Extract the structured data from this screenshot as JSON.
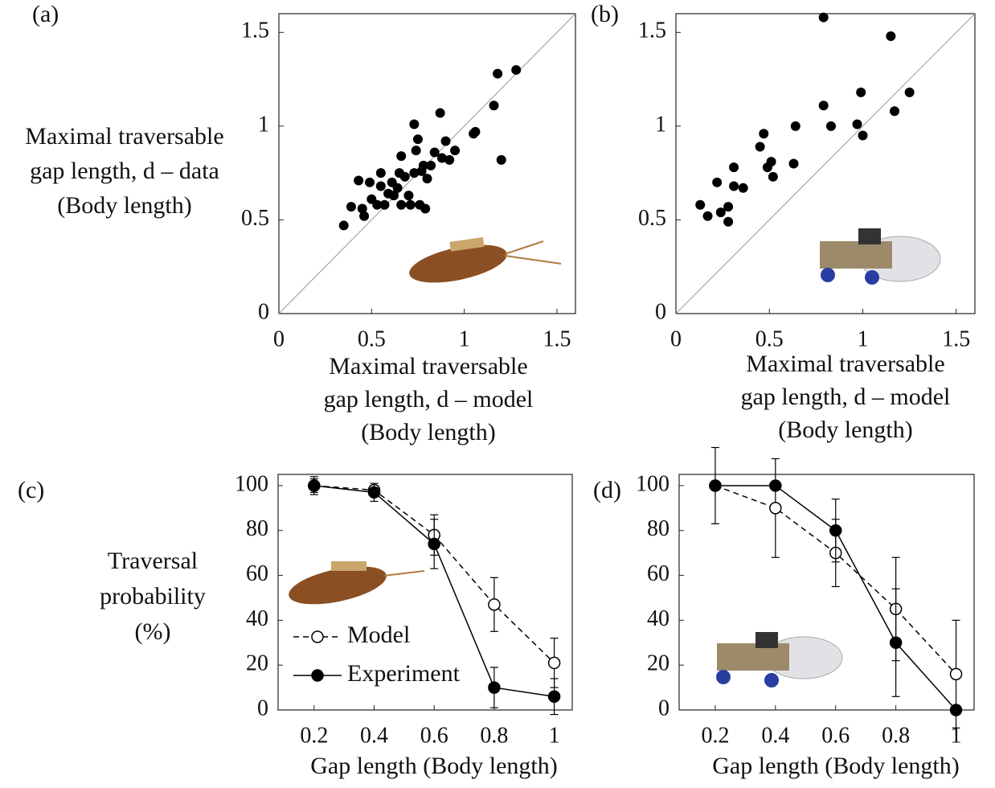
{
  "chart_data": [
    {
      "type": "scatter",
      "label": "(a)",
      "ylabel": [
        "Maximal traversable",
        "gap length, d – data",
        "(Body length)"
      ],
      "xlabel": [
        "Maximal traversable",
        "gap length, d – model",
        "(Body length)"
      ],
      "x": [
        0.35,
        0.39,
        0.43,
        0.45,
        0.46,
        0.49,
        0.5,
        0.53,
        0.55,
        0.55,
        0.57,
        0.59,
        0.61,
        0.62,
        0.64,
        0.65,
        0.66,
        0.66,
        0.68,
        0.7,
        0.71,
        0.73,
        0.73,
        0.74,
        0.75,
        0.76,
        0.77,
        0.78,
        0.79,
        0.8,
        0.82,
        0.84,
        0.87,
        0.88,
        0.9,
        0.92,
        0.95,
        1.05,
        1.06,
        1.16,
        1.18,
        1.2,
        1.28
      ],
      "values": [
        0.47,
        0.57,
        0.71,
        0.56,
        0.52,
        0.7,
        0.61,
        0.58,
        0.75,
        0.68,
        0.58,
        0.64,
        0.7,
        0.63,
        0.67,
        0.75,
        0.84,
        0.58,
        0.73,
        0.63,
        0.58,
        1.01,
        0.75,
        0.87,
        0.93,
        0.58,
        0.76,
        0.79,
        0.56,
        0.72,
        0.79,
        0.86,
        1.07,
        0.83,
        0.92,
        0.82,
        0.87,
        0.96,
        0.97,
        1.11,
        1.28,
        0.82,
        1.3
      ],
      "color": "#000000",
      "diagonal": true,
      "xlim": [
        0,
        1.6
      ],
      "ylim": [
        0,
        1.6
      ],
      "xticks": [
        0,
        0.5,
        1,
        1.5
      ],
      "yticks": [
        0,
        0.5,
        1,
        1.5
      ]
    },
    {
      "type": "scatter",
      "label": "(b)",
      "xlabel": [
        "Maximal traversable",
        "gap length, d – model",
        "(Body length)"
      ],
      "x": [
        0.13,
        0.17,
        0.22,
        0.24,
        0.28,
        0.28,
        0.31,
        0.31,
        0.36,
        0.45,
        0.47,
        0.49,
        0.51,
        0.52,
        0.63,
        0.64,
        0.79,
        0.79,
        0.83,
        0.97,
        0.99,
        1.0,
        1.15,
        1.17,
        1.25
      ],
      "values": [
        0.58,
        0.52,
        0.7,
        0.54,
        0.49,
        0.57,
        0.68,
        0.78,
        0.67,
        0.89,
        0.96,
        0.78,
        0.81,
        0.73,
        0.8,
        1.0,
        1.11,
        1.58,
        1.0,
        1.01,
        1.18,
        0.95,
        1.48,
        1.08,
        1.18
      ],
      "color": "#000000",
      "diagonal": true,
      "xlim": [
        0,
        1.6
      ],
      "ylim": [
        0,
        1.6
      ],
      "xticks": [
        0,
        0.5,
        1,
        1.5
      ],
      "yticks": [
        0,
        0.5,
        1,
        1.5
      ]
    },
    {
      "type": "line",
      "label": "(c)",
      "ylabel": [
        "Traversal",
        "probability",
        "(%)"
      ],
      "xlabel": "Gap length (Body length)",
      "x": [
        0.2,
        0.4,
        0.6,
        0.8,
        1
      ],
      "series": [
        {
          "name": "Model",
          "color": "#000000",
          "dashed": true,
          "filled": false,
          "values": [
            100,
            98,
            78,
            47,
            21
          ],
          "errors": [
            4,
            2,
            9,
            12,
            11
          ]
        },
        {
          "name": "Experiment",
          "color": "#000000",
          "dashed": false,
          "filled": true,
          "values": [
            100,
            97,
            74,
            10,
            6
          ],
          "errors": [
            3,
            4,
            11,
            9,
            8
          ]
        }
      ],
      "legend": true,
      "xlim": [
        0.08,
        1.06
      ],
      "ylim": [
        0,
        105
      ],
      "xticks": [
        0.2,
        0.4,
        0.6,
        0.8,
        1
      ],
      "yticks": [
        0,
        20,
        40,
        60,
        80,
        100
      ]
    },
    {
      "type": "line",
      "label": "(d)",
      "xlabel": "Gap length (Body length)",
      "x": [
        0.2,
        0.4,
        0.6,
        0.8,
        1
      ],
      "series": [
        {
          "name": "Model",
          "color": "#000000",
          "dashed": true,
          "filled": false,
          "values": [
            100,
            90,
            70,
            45,
            16
          ],
          "errors": [
            17,
            22,
            15,
            23,
            24
          ]
        },
        {
          "name": "Experiment",
          "color": "#000000",
          "dashed": false,
          "filled": true,
          "values": [
            100,
            100,
            80,
            30,
            0
          ],
          "errors": [
            0,
            0,
            14,
            24,
            0
          ]
        }
      ],
      "legend": false,
      "xlim": [
        0.08,
        1.06
      ],
      "ylim": [
        0,
        105
      ],
      "xticks": [
        0.2,
        0.4,
        0.6,
        0.8,
        1
      ],
      "yticks": [
        0,
        20,
        40,
        60,
        80,
        100
      ]
    }
  ]
}
